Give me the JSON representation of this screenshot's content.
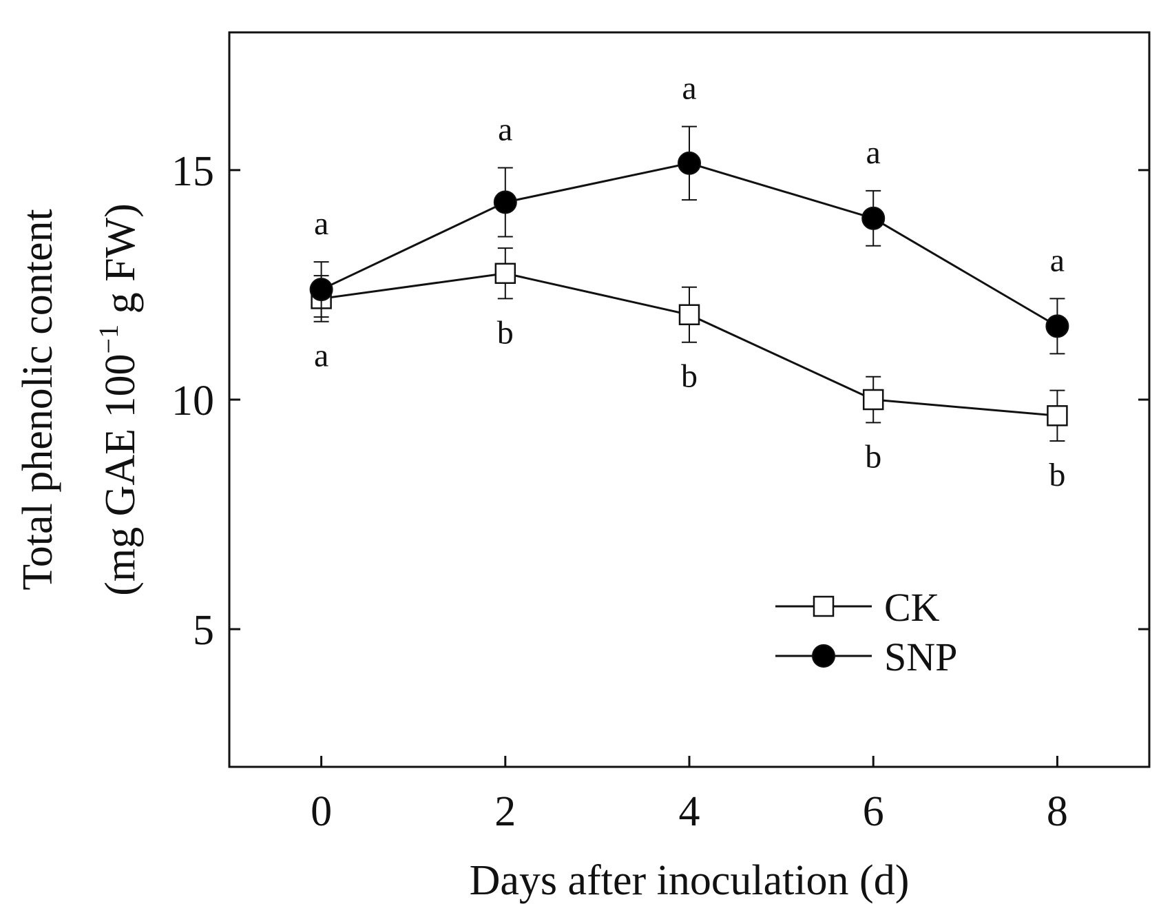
{
  "chart_data": {
    "type": "line",
    "title": "",
    "xlabel": "Days after inoculation (d)",
    "ylabel_line1": "Total phenolic content",
    "ylabel_line2_prefix": "(mg GAE 100",
    "ylabel_line2_sup": "−1",
    "ylabel_line2_suffix": " g FW)",
    "xlim": [
      -1,
      9
    ],
    "ylim": [
      2,
      18
    ],
    "x": [
      0,
      2,
      4,
      6,
      8
    ],
    "x_tick_labels": [
      "0",
      "2",
      "4",
      "6",
      "8"
    ],
    "y_ticks": [
      5,
      10,
      15
    ],
    "y_tick_labels": [
      "5",
      "10",
      "15"
    ],
    "grid": false,
    "legend_position": "bottom-right",
    "series": [
      {
        "name": "CK",
        "marker": "open-square",
        "values": [
          12.2,
          12.75,
          11.85,
          10.0,
          9.65
        ],
        "errors": [
          0.5,
          0.55,
          0.6,
          0.5,
          0.55
        ],
        "significance": [
          "a",
          "b",
          "b",
          "b",
          "b"
        ],
        "label_side": [
          "below",
          "below",
          "below",
          "below",
          "below"
        ]
      },
      {
        "name": "SNP",
        "marker": "filled-circle",
        "values": [
          12.4,
          14.3,
          15.15,
          13.95,
          11.6
        ],
        "errors": [
          0.6,
          0.75,
          0.8,
          0.6,
          0.6
        ],
        "significance": [
          "a",
          "a",
          "a",
          "a",
          "a"
        ],
        "label_side": [
          "above",
          "above",
          "above",
          "above",
          "above"
        ]
      }
    ],
    "colors": {
      "line": "#111111",
      "marker_fill_open": "#ffffff",
      "marker_fill_filled": "#000000"
    }
  }
}
